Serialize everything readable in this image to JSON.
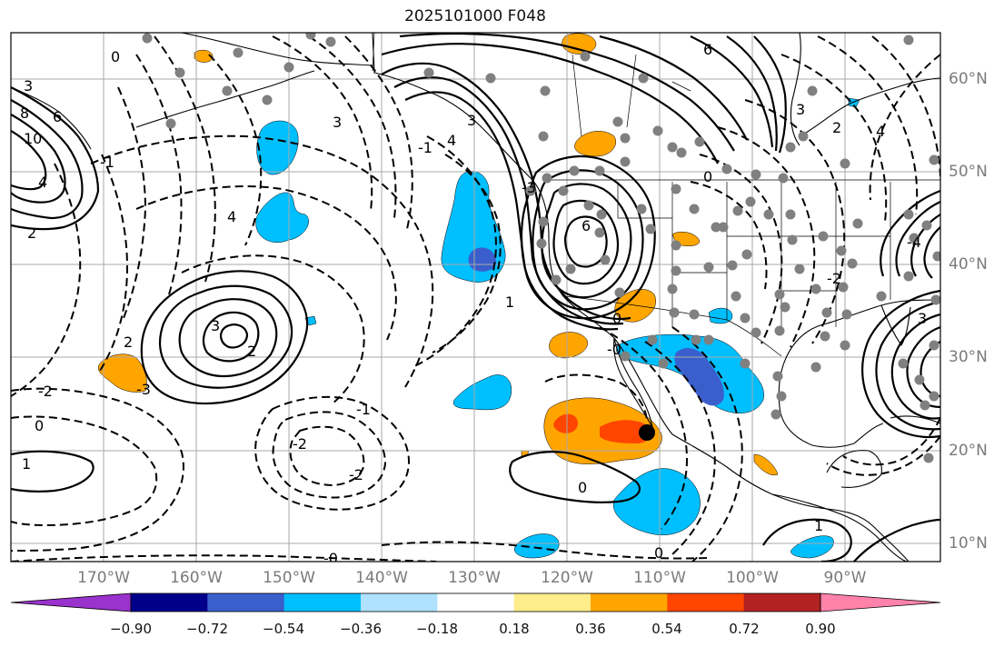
{
  "title": "2025101000 F048",
  "latitude_labels": [
    "60°N",
    "50°N",
    "40°N",
    "30°N",
    "20°N",
    "10°N"
  ],
  "longitude_labels": [
    "170°W",
    "160°W",
    "150°W",
    "140°W",
    "130°W",
    "120°W",
    "110°W",
    "100°W",
    "90°W"
  ],
  "contour_labels": [
    "3",
    "8",
    "10",
    "6",
    "4",
    "2",
    "-1",
    "0",
    "1",
    "-2",
    "2",
    "-3",
    "3",
    "2",
    "4",
    "3",
    "-2",
    "-1",
    "-2",
    "0",
    "-0",
    "-1",
    "6",
    "4",
    "3",
    "-0",
    "0",
    "-3",
    "1",
    "0",
    "6",
    "2",
    "3",
    "4",
    "-4",
    "3",
    "-2",
    "0",
    "1",
    "0"
  ],
  "colorbar": {
    "labels": [
      "−0.90",
      "−0.72",
      "−0.54",
      "−0.36",
      "−0.18",
      "0.18",
      "0.36",
      "0.54",
      "0.72",
      "0.90"
    ],
    "colors": [
      "#9a32cd",
      "#00008b",
      "#3a5fcd",
      "#00bfff",
      "#b0e2ff",
      "#ffffff",
      "#ffec8b",
      "#ffa500",
      "#ff4500",
      "#b22222",
      "#ff82ab"
    ]
  },
  "colors": {
    "neg_strong": "#3a5fcd",
    "neg_mid": "#00bfff",
    "pos_mid": "#ffa500",
    "pos_strong": "#ff4500",
    "station": "#808080"
  }
}
